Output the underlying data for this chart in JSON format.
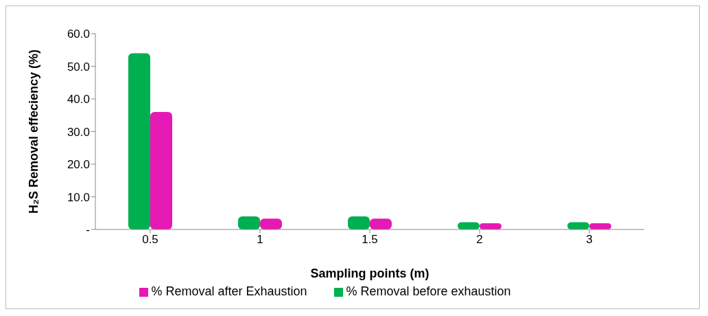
{
  "chart_data": {
    "type": "bar",
    "xlabel": "Sampling points (m)",
    "ylabel": "H₂S Removal effeciency (%)",
    "categories": [
      "0.5",
      "1",
      "1.5",
      "2",
      "3"
    ],
    "series": [
      {
        "name": "% Removal before exhaustion",
        "color": "#00b050",
        "values": [
          54,
          4,
          4,
          2.2,
          2.2
        ]
      },
      {
        "name": "% Removal after Exhaustion",
        "color": "#e619b4",
        "values": [
          36,
          3.3,
          3.3,
          1.9,
          1.9
        ]
      }
    ],
    "ylim": [
      0,
      60
    ],
    "yticks": [
      {
        "value": 0,
        "label": "-"
      },
      {
        "value": 10,
        "label": "10.0"
      },
      {
        "value": 20,
        "label": "20.0"
      },
      {
        "value": 30,
        "label": "30.0"
      },
      {
        "value": 40,
        "label": "40.0"
      },
      {
        "value": 50,
        "label": "50.0"
      },
      {
        "value": 60,
        "label": "60.0"
      }
    ],
    "grid": false,
    "legend": "bottom"
  }
}
